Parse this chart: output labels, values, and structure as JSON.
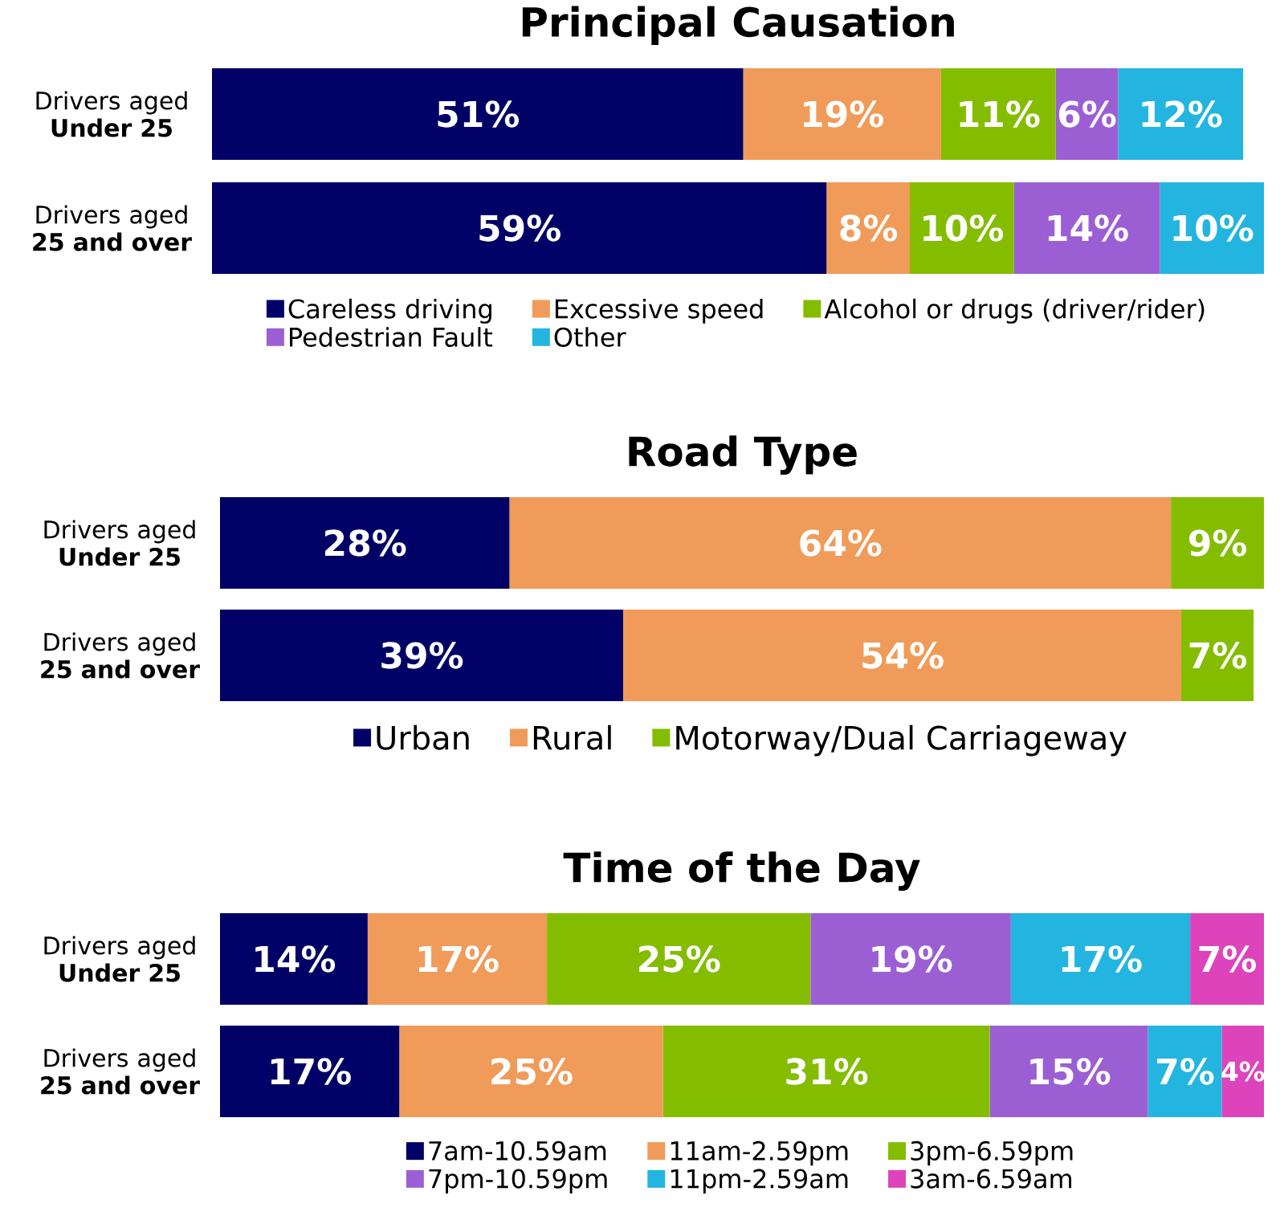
{
  "chart_data": [
    {
      "type": "bar",
      "orientation": "horizontal",
      "stacked": true,
      "legend": "bottom",
      "title": "Principal Causation",
      "categories": [
        "Drivers aged **Under 25**",
        "Drivers aged **25 and over**"
      ],
      "series": [
        {
          "name": "Careless driving",
          "color": "#000066",
          "values": [
            51,
            59
          ],
          "value_labels": [
            "51%",
            "59%"
          ]
        },
        {
          "name": "Excessive speed",
          "color": "#f09b59",
          "values": [
            19,
            8
          ],
          "value_labels": [
            "19%",
            "8%"
          ]
        },
        {
          "name": "Alcohol or drugs (driver/rider)",
          "color": "#84bd00",
          "values": [
            11,
            10
          ],
          "value_labels": [
            "11%",
            "10%"
          ]
        },
        {
          "name": "Pedestrian Fault",
          "color": "#9c5fd3",
          "values": [
            6,
            14
          ],
          "value_labels": [
            "6%",
            "14%"
          ]
        },
        {
          "name": "Other",
          "color": "#23b5e0",
          "values": [
            12,
            10
          ],
          "value_labels": [
            "12%",
            "10%"
          ]
        }
      ]
    },
    {
      "type": "bar",
      "orientation": "horizontal",
      "stacked": true,
      "legend": "bottom",
      "title": "Road Type",
      "categories": [
        "Drivers aged **Under 25**",
        "Drivers aged **25 and over**"
      ],
      "series": [
        {
          "name": "Urban",
          "color": "#000066",
          "values": [
            28,
            39
          ],
          "value_labels": [
            "28%",
            "39%"
          ]
        },
        {
          "name": "Rural",
          "color": "#f09b59",
          "values": [
            64,
            54
          ],
          "value_labels": [
            "64%",
            "54%"
          ]
        },
        {
          "name": "Motorway/Dual Carriageway",
          "color": "#84bd00",
          "values": [
            9,
            7
          ],
          "value_labels": [
            "9%",
            "7%"
          ]
        }
      ]
    },
    {
      "type": "bar",
      "orientation": "horizontal",
      "stacked": true,
      "legend": "bottom",
      "title": "Time of the Day",
      "categories": [
        "Drivers aged **Under 25**",
        "Drivers aged **25 and over**"
      ],
      "series": [
        {
          "name": "7am-10.59am",
          "color": "#000066",
          "values": [
            14,
            17
          ],
          "value_labels": [
            "14%",
            "17%"
          ]
        },
        {
          "name": "11am-2.59pm",
          "color": "#f09b59",
          "values": [
            17,
            25
          ],
          "value_labels": [
            "17%",
            "25%"
          ]
        },
        {
          "name": "3pm-6.59pm",
          "color": "#84bd00",
          "values": [
            25,
            31
          ],
          "value_labels": [
            "25%",
            "31%"
          ]
        },
        {
          "name": "7pm-10.59pm",
          "color": "#9c5fd3",
          "values": [
            19,
            15
          ],
          "value_labels": [
            "19%",
            "15%"
          ]
        },
        {
          "name": "11pm-2.59am",
          "color": "#23b5e0",
          "values": [
            17,
            7
          ],
          "value_labels": [
            "17%",
            "7%"
          ]
        },
        {
          "name": "3am-6.59am",
          "color": "#dd44bb",
          "values": [
            7,
            4
          ],
          "value_labels": [
            "7%",
            "4%"
          ]
        }
      ]
    }
  ]
}
